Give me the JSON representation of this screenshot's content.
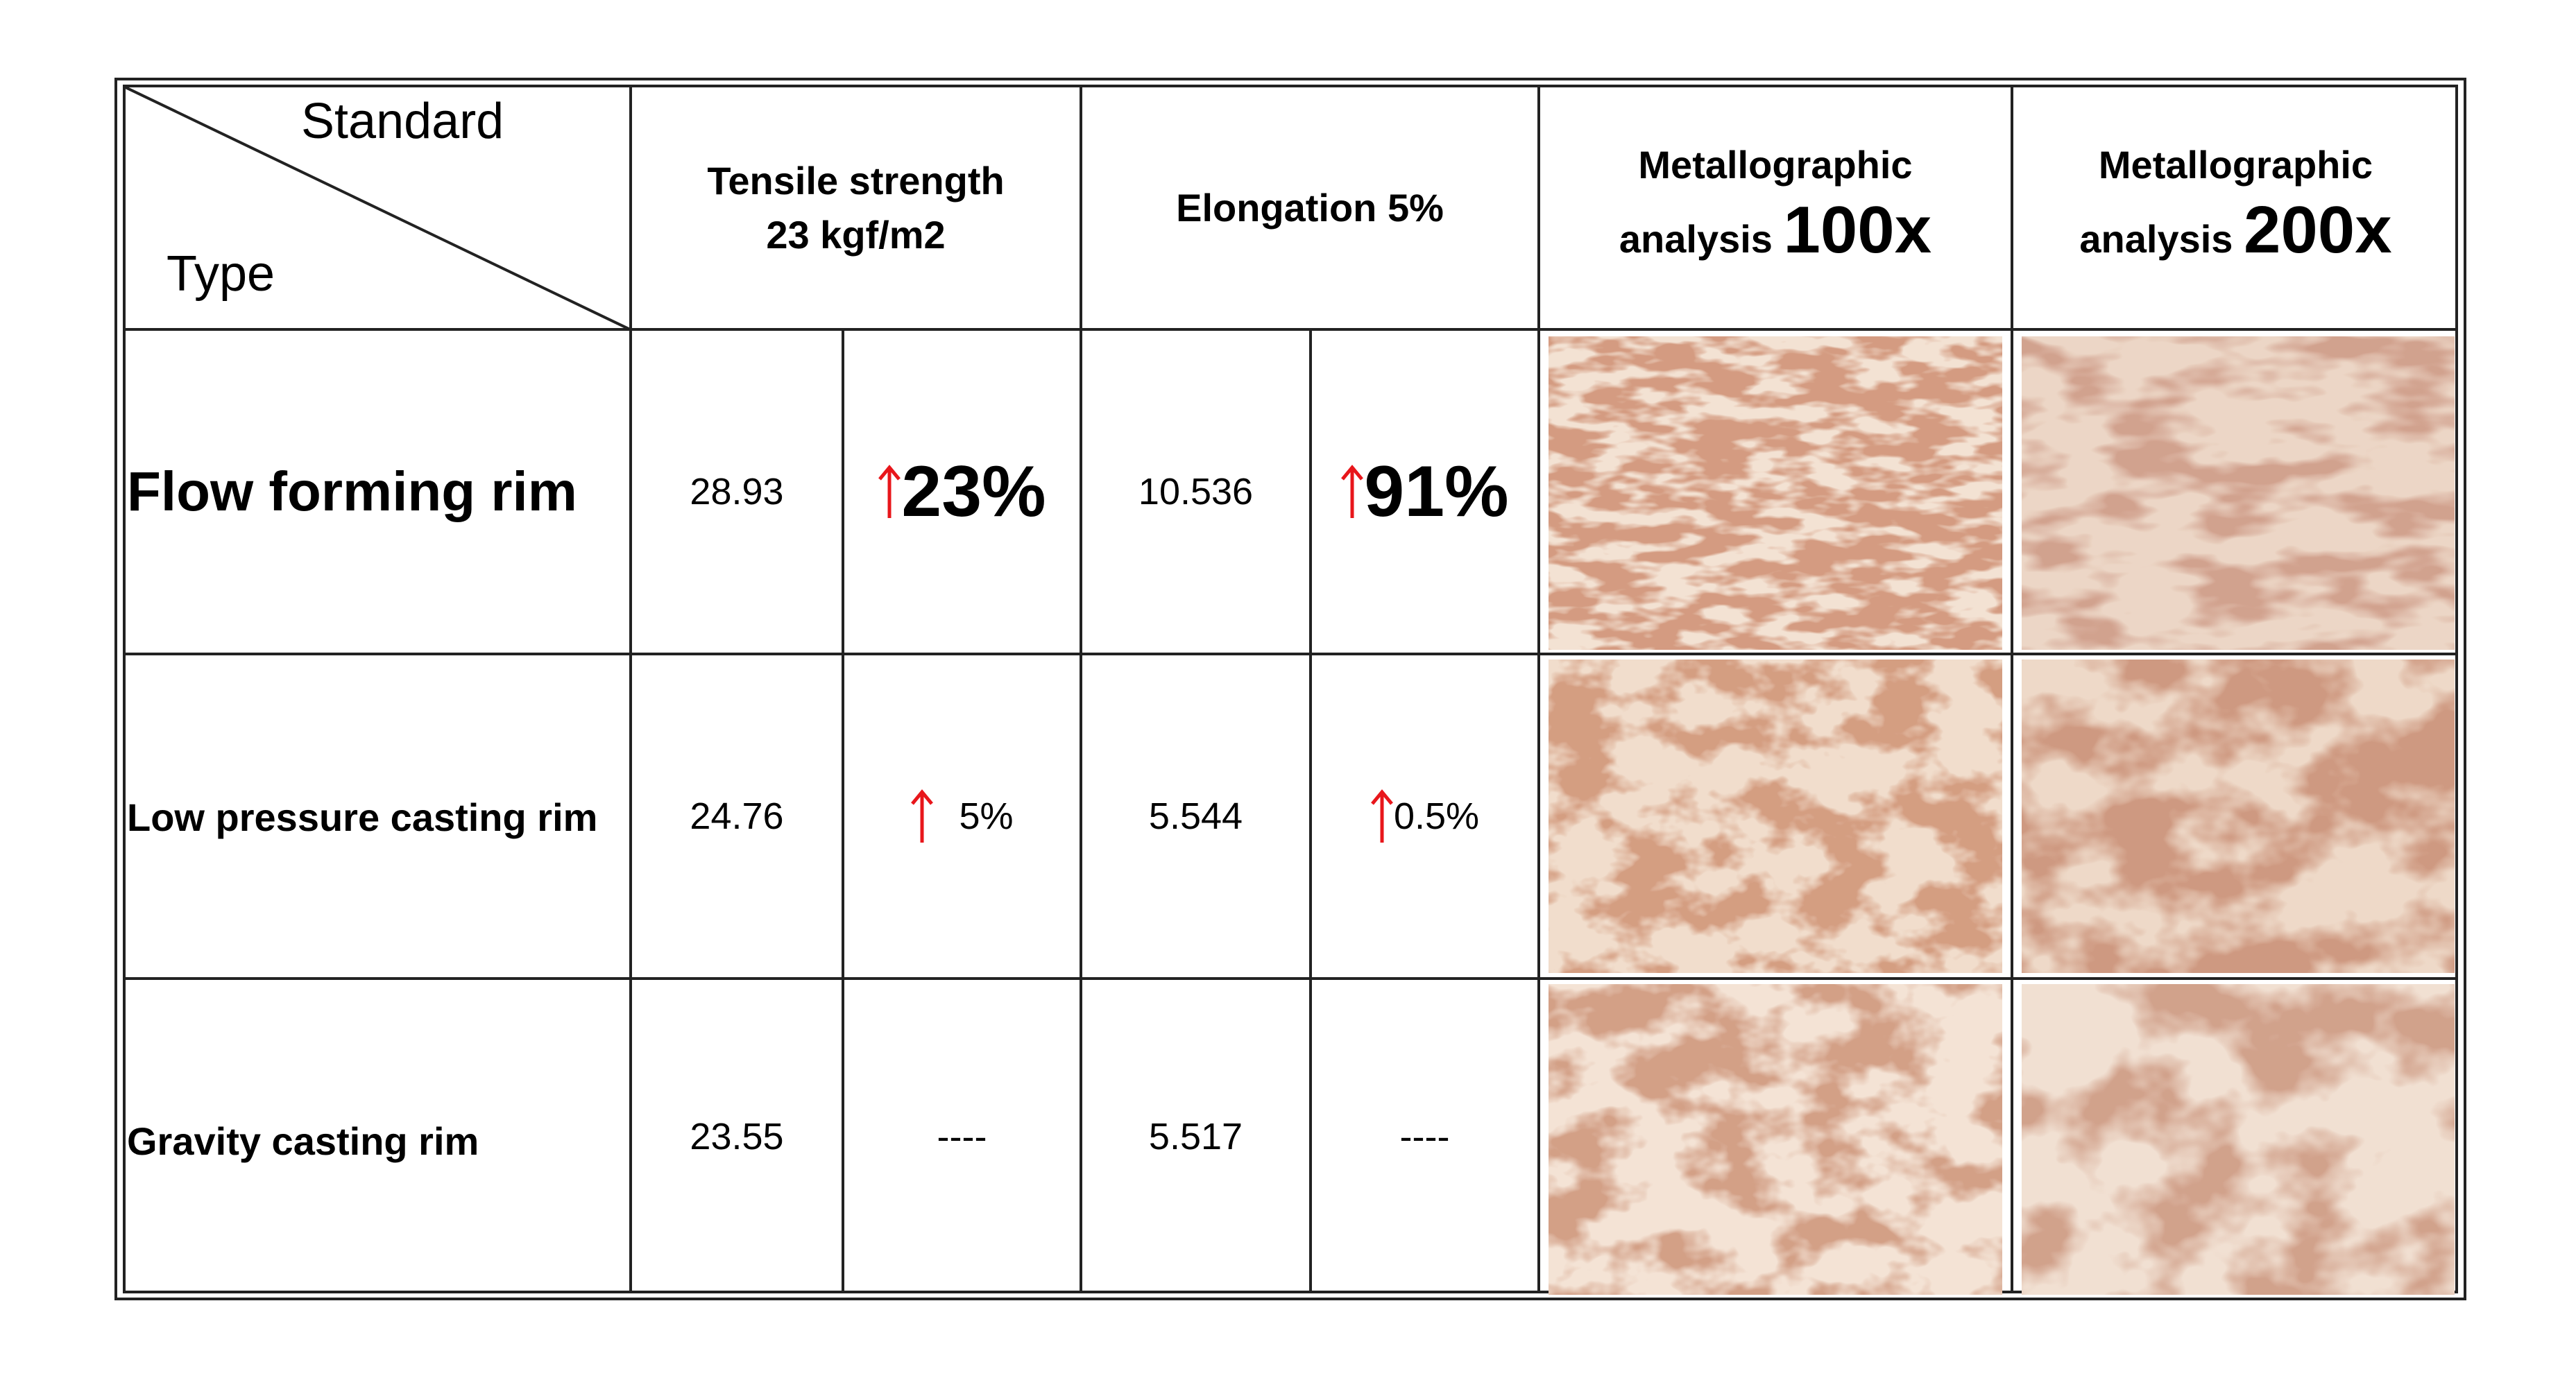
{
  "header": {
    "corner_top": "Standard",
    "corner_bottom": "Type",
    "tensile_line1": "Tensile strength",
    "tensile_line2": "23 kgf/m2",
    "elongation": "Elongation 5%",
    "metallo100_line1": "Metallographic",
    "metallo100_small": "analysis",
    "metallo100_big": "100x",
    "metallo200_line1": "Metallographic",
    "metallo200_small": "analysis",
    "metallo200_big": "200x"
  },
  "rows": [
    {
      "type": "Flow forming rim",
      "tensile": "28.93",
      "tensile_change": "23%",
      "elongation": "10.536",
      "elongation_change": "91%"
    },
    {
      "type": "Low pressure casting rim",
      "tensile": "24.76",
      "tensile_change": "5%",
      "elongation": "5.544",
      "elongation_change": "0.5%"
    },
    {
      "type": "Gravity casting rim",
      "tensile": "23.55",
      "tensile_change": "----",
      "elongation": "5.517",
      "elongation_change": "----"
    }
  ],
  "colors": {
    "arrow": "#e8161b",
    "grid": "#222222",
    "micro_bg": "#f3e2d3",
    "micro_stain": "#a9553a"
  },
  "icons": {
    "increase": "up-arrow-icon"
  }
}
